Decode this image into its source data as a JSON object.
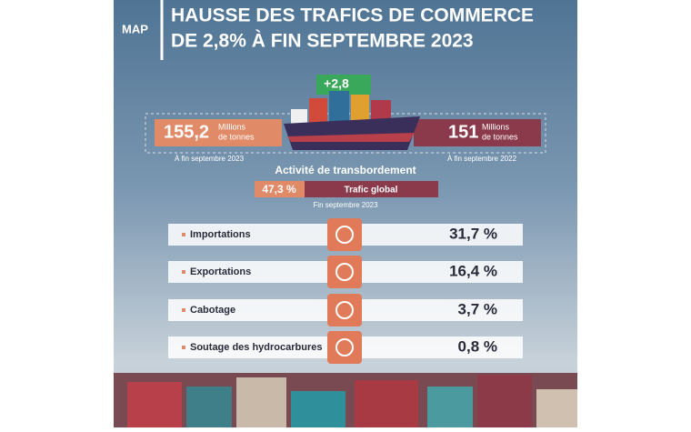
{
  "logo": "MAP",
  "header": {
    "title_line1": "HAUSSE DES TRAFICS DE COMMERCE",
    "title_line2": "DE 2,8% À FIN SEPTEMBRE 2023"
  },
  "badge": "+2,8",
  "left_figure": {
    "value": "155,2",
    "unit_line1": "Millions",
    "unit_line2": "de tonnes",
    "caption": "À fin septembre 2023"
  },
  "right_figure": {
    "value": "151",
    "unit_line1": "Millions",
    "unit_line2": "de tonnes",
    "caption": "À fin septembre 2022"
  },
  "transshipment": {
    "title": "Activité de transbordement",
    "value": "47,3 %",
    "label": "Trafic global",
    "caption": "Fin septembre 2023"
  },
  "rows": [
    {
      "label": "Importations",
      "value": "31,7 %"
    },
    {
      "label": "Exportations",
      "value": "16,4 %"
    },
    {
      "label": "Cabotage",
      "value": "3,7 %"
    },
    {
      "label": "Soutage des hydrocarbures",
      "value": "0,8 %"
    }
  ]
}
